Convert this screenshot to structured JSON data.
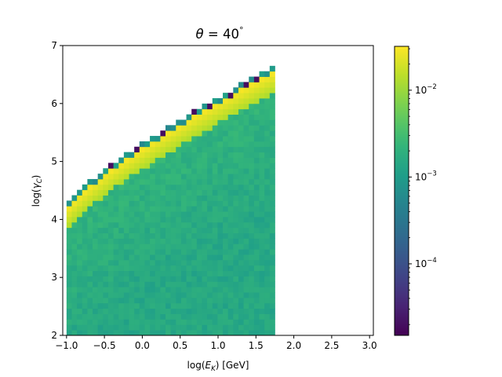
{
  "chart_data": {
    "type": "heatmap",
    "title": "θ = 40°",
    "title_parts": {
      "theta": "θ",
      "equals": " = 40",
      "degree": "°"
    },
    "xlabel": "log(E_K) [GeV]",
    "xlabel_parts": {
      "pre": "log(",
      "var": "E",
      "sub": "K",
      "post": ") [GeV]"
    },
    "ylabel": "log(γ_C)",
    "ylabel_parts": {
      "pre": "log(",
      "var": "γ",
      "sub": "C",
      "post": ")"
    },
    "xlim": [
      -1.05,
      3.05
    ],
    "ylim": [
      2,
      7
    ],
    "x_ticks": [
      -1.0,
      -0.5,
      0.0,
      0.5,
      1.0,
      1.5,
      2.0,
      2.5,
      3.0
    ],
    "x_tick_labels": [
      "−1.0",
      "−0.5",
      "0.0",
      "0.5",
      "1.0",
      "1.5",
      "2.0",
      "2.5",
      "3.0"
    ],
    "y_ticks": [
      2,
      3,
      4,
      5,
      6,
      7
    ],
    "y_tick_labels": [
      "2",
      "3",
      "4",
      "5",
      "6",
      "7"
    ],
    "bins": {
      "x_start": -1.0,
      "x_end": 1.75,
      "nx": 40,
      "y_start": 2.0,
      "y_end": 6.65,
      "ny": 50
    },
    "ridge": {
      "description_free": true,
      "y_at_x_min": 4.15,
      "y_at_x_max": 6.55
    },
    "colormap": "viridis",
    "color_scale": "log",
    "colorbar": {
      "vmin": 1.5e-05,
      "vmax": 0.032,
      "tick_values": [
        0.0001,
        0.001,
        0.01
      ],
      "tick_labels": [
        {
          "base": "10",
          "exp": "−4"
        },
        {
          "base": "10",
          "exp": "−3"
        },
        {
          "base": "10",
          "exp": "−2"
        }
      ]
    },
    "levels": {
      "floor": 0.0015,
      "body": 0.0022,
      "edge": 0.03,
      "upper_edge": 0.0008,
      "sparse_low": 2e-05
    },
    "grid": false,
    "legend": "none"
  }
}
